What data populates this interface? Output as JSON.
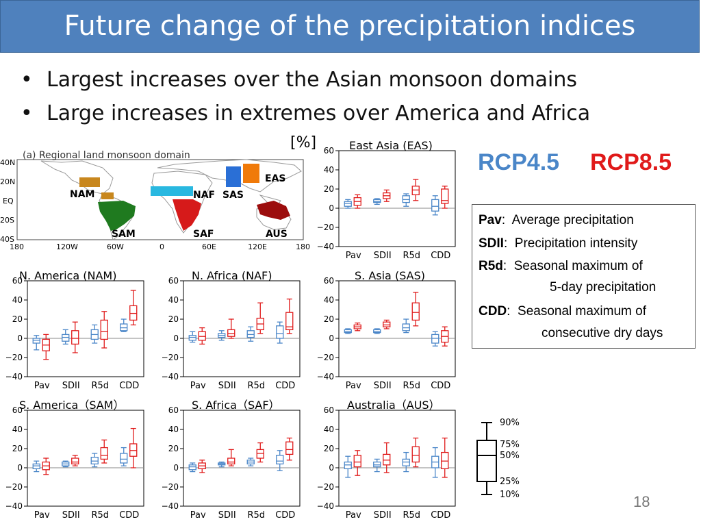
{
  "slide": {
    "title": "Future change of the precipitation indices",
    "bullets": [
      "Largest increases over the Asian monsoon domains",
      "Large increases in extremes over America and Africa"
    ],
    "bullet_symbol": "•",
    "page_number": "18"
  },
  "legend": {
    "rcp45": "RCP4.5",
    "rcp85": "RCP8.5",
    "rcp45_color": "#4a86c8",
    "rcp85_color": "#e01a1a",
    "unit_label": "[%]"
  },
  "definitions": [
    {
      "term": "Pav",
      "sep": ":",
      "desc": "Average precipitation",
      "cont": ""
    },
    {
      "term": "SDII",
      "sep": ":",
      "desc": "Precipitation intensity",
      "cont": ""
    },
    {
      "term": "R5d",
      "sep": ":",
      "desc": "Seasonal maximum of",
      "cont": "5-day precipitation"
    },
    {
      "term": "CDD",
      "sep": ":",
      "desc": "Seasonal maximum of",
      "cont": "consecutive dry days"
    }
  ],
  "map": {
    "title": "(a) Regional land monsoon domain",
    "lat_ticks": [
      "40N",
      "20N",
      "EQ",
      "20S",
      "40S"
    ],
    "lon_ticks": [
      "180",
      "120W",
      "60W",
      "0",
      "60E",
      "120E",
      "180"
    ],
    "regions": [
      {
        "abbr": "NAM",
        "color": "#c8871e"
      },
      {
        "abbr": "SAM",
        "color": "#1f7a1f"
      },
      {
        "abbr": "NAF",
        "color": "#29b8e0"
      },
      {
        "abbr": "SAF",
        "color": "#d61a1a"
      },
      {
        "abbr": "SAS",
        "color": "#2a6fd6"
      },
      {
        "abbr": "EAS",
        "color": "#f07a0a"
      },
      {
        "abbr": "AUS",
        "color": "#9c0d0d"
      }
    ]
  },
  "percentile_key": {
    "labels": [
      "90%",
      "75%",
      "50%",
      "25%",
      "10%"
    ]
  },
  "chart_data": [
    {
      "type": "boxplot",
      "title": "East Asia (EAS)",
      "ylim": [
        -40,
        60
      ],
      "yticks": [
        -40,
        -20,
        0,
        20,
        40,
        60
      ],
      "categories": [
        "Pav",
        "SDII",
        "R5d",
        "CDD"
      ],
      "series": [
        {
          "name": "RCP4.5",
          "boxes": [
            [
              0,
              2,
              5,
              7,
              9
            ],
            [
              4,
              6,
              7,
              9,
              10
            ],
            [
              2,
              6,
              9,
              13,
              15
            ],
            [
              -7,
              -3,
              2,
              9,
              13
            ]
          ]
        },
        {
          "name": "RCP8.5",
          "boxes": [
            [
              0,
              3,
              7,
              11,
              14
            ],
            [
              7,
              10,
              13,
              16,
              19
            ],
            [
              8,
              14,
              19,
              23,
              30
            ],
            [
              0,
              5,
              8,
              20,
              23
            ]
          ]
        }
      ]
    },
    {
      "type": "boxplot",
      "title": "N. America (NAM)",
      "ylim": [
        -40,
        60
      ],
      "yticks": [
        -40,
        -20,
        0,
        20,
        40,
        60
      ],
      "categories": [
        "Pav",
        "SDII",
        "R5d",
        "CDD"
      ],
      "series": [
        {
          "name": "RCP4.5",
          "boxes": [
            [
              -12,
              -5,
              -2,
              0,
              3
            ],
            [
              -6,
              -3,
              1,
              4,
              9
            ],
            [
              -5,
              -1,
              4,
              9,
              14
            ],
            [
              7,
              8,
              11,
              15,
              20
            ]
          ]
        },
        {
          "name": "RCP8.5",
          "boxes": [
            [
              -22,
              -13,
              -7,
              -1,
              4
            ],
            [
              -15,
              -6,
              0,
              8,
              17
            ],
            [
              -10,
              -1,
              7,
              19,
              28
            ],
            [
              14,
              19,
              26,
              34,
              50
            ]
          ]
        }
      ]
    },
    {
      "type": "boxplot",
      "title": "N. Africa (NAF)",
      "ylim": [
        -40,
        60
      ],
      "yticks": [
        -40,
        -20,
        0,
        20,
        40,
        60
      ],
      "categories": [
        "Pav",
        "SDII",
        "R5d",
        "CDD"
      ],
      "series": [
        {
          "name": "RCP4.5",
          "boxes": [
            [
              -4,
              -2,
              1,
              3,
              7
            ],
            [
              -2,
              1,
              3,
              5,
              8
            ],
            [
              -3,
              1,
              4,
              8,
              12
            ],
            [
              -5,
              0,
              5,
              13,
              17
            ]
          ]
        },
        {
          "name": "RCP8.5",
          "boxes": [
            [
              -6,
              -2,
              2,
              7,
              11
            ],
            [
              0,
              2,
              5,
              9,
              20
            ],
            [
              5,
              9,
              15,
              21,
              37
            ],
            [
              5,
              9,
              12,
              27,
              41
            ]
          ]
        }
      ]
    },
    {
      "type": "boxplot",
      "title": "S. Asia (SAS)",
      "ylim": [
        -40,
        60
      ],
      "yticks": [
        -40,
        -20,
        0,
        20,
        40,
        60
      ],
      "categories": [
        "Pav",
        "SDII",
        "R5d",
        "CDD"
      ],
      "series": [
        {
          "name": "RCP4.5",
          "boxes": [
            [
              5,
              6,
              7,
              9,
              10
            ],
            [
              5,
              6,
              7,
              9,
              10
            ],
            [
              6,
              8,
              11,
              15,
              20
            ],
            [
              -8,
              -5,
              0,
              4,
              7
            ]
          ]
        },
        {
          "name": "RCP8.5",
          "boxes": [
            [
              8,
              10,
              12,
              14,
              16
            ],
            [
              10,
              12,
              14,
              17,
              19
            ],
            [
              13,
              19,
              27,
              37,
              48
            ],
            [
              -8,
              -4,
              2,
              8,
              12
            ]
          ]
        }
      ]
    },
    {
      "type": "boxplot",
      "title": "S. America（SAM）",
      "ylim": [
        -40,
        60
      ],
      "yticks": [
        -40,
        -20,
        0,
        20,
        40,
        60
      ],
      "categories": [
        "Pav",
        "SDII",
        "R5d",
        "CDD"
      ],
      "series": [
        {
          "name": "RCP4.5",
          "boxes": [
            [
              -4,
              -1,
              2,
              4,
              7
            ],
            [
              1,
              2,
              4,
              6,
              7
            ],
            [
              1,
              4,
              7,
              11,
              15
            ],
            [
              2,
              5,
              9,
              15,
              21
            ]
          ]
        },
        {
          "name": "RCP8.5",
          "boxes": [
            [
              -7,
              -2,
              2,
              6,
              10
            ],
            [
              2,
              4,
              6,
              10,
              13
            ],
            [
              5,
              9,
              13,
              21,
              29
            ],
            [
              0,
              12,
              18,
              25,
              41
            ]
          ]
        }
      ]
    },
    {
      "type": "boxplot",
      "title": "S. Africa（SAF）",
      "ylim": [
        -40,
        60
      ],
      "yticks": [
        -40,
        -20,
        0,
        20,
        40,
        60
      ],
      "categories": [
        "Pav",
        "SDII",
        "R5d",
        "CDD"
      ],
      "series": [
        {
          "name": "RCP4.5",
          "boxes": [
            [
              -4,
              -2,
              1,
              3,
              5
            ],
            [
              1,
              3,
              4,
              5,
              6
            ],
            [
              2,
              4,
              6,
              8,
              10
            ],
            [
              -3,
              4,
              7,
              13,
              18
            ]
          ]
        },
        {
          "name": "RCP8.5",
          "boxes": [
            [
              -5,
              -1,
              2,
              5,
              8
            ],
            [
              2,
              4,
              6,
              10,
              19
            ],
            [
              6,
              10,
              15,
              19,
              26
            ],
            [
              8,
              14,
              19,
              27,
              31
            ]
          ]
        }
      ]
    },
    {
      "type": "boxplot",
      "title": "Australia（AUS）",
      "ylim": [
        -40,
        60
      ],
      "yticks": [
        -40,
        -20,
        0,
        20,
        40,
        60
      ],
      "categories": [
        "Pav",
        "SDII",
        "R5d",
        "CDD"
      ],
      "series": [
        {
          "name": "RCP4.5",
          "boxes": [
            [
              -10,
              -1,
              3,
              6,
              12
            ],
            [
              -4,
              1,
              3,
              6,
              9
            ],
            [
              -4,
              2,
              6,
              9,
              16
            ],
            [
              -10,
              0,
              6,
              12,
              21
            ]
          ]
        },
        {
          "name": "RCP8.5",
          "boxes": [
            [
              -8,
              1,
              6,
              13,
              18
            ],
            [
              -5,
              3,
              8,
              14,
              26
            ],
            [
              1,
              6,
              13,
              22,
              31
            ],
            [
              -10,
              -1,
              7,
              16,
              31
            ]
          ]
        }
      ]
    }
  ]
}
